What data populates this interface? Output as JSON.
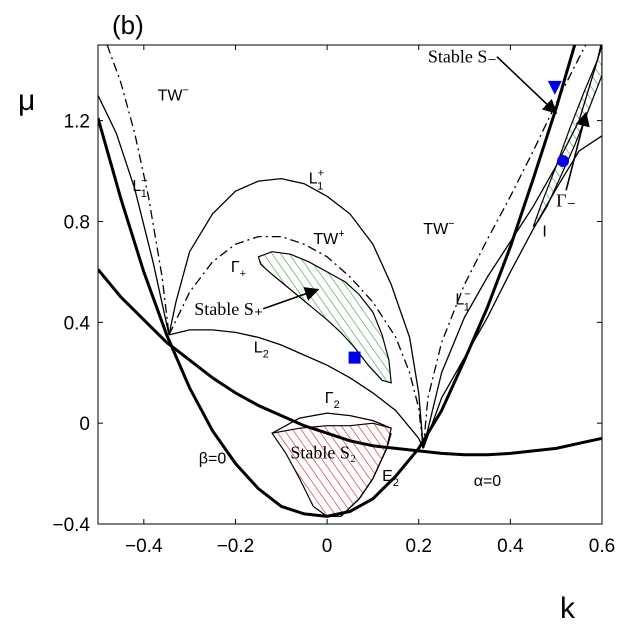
{
  "chart_data": {
    "type": "line",
    "panel_label": "(b)",
    "xlabel": "k",
    "ylabel": "μ",
    "xlim": [
      -0.5,
      0.6
    ],
    "ylim": [
      -0.4,
      1.5
    ],
    "xticks": [
      -0.4,
      -0.2,
      0,
      0.2,
      0.4,
      0.6
    ],
    "xtick_labels": [
      "−0.4",
      "−0.2",
      "0",
      "0.2",
      "0.4",
      "0.6"
    ],
    "yticks": [
      -0.4,
      0,
      0.4,
      0.8,
      1.2
    ],
    "ytick_labels": [
      "−0.4",
      "0",
      "0.4",
      "0.8",
      "1.2"
    ],
    "colors": {
      "green": "#33a033",
      "red": "#cc2020",
      "blue": "#0000ee",
      "black": "#000000"
    },
    "series": [
      {
        "name": "beta_zero",
        "label": "β=0",
        "style": "thick",
        "x": [
          -0.5,
          -0.45,
          -0.4,
          -0.35,
          -0.3,
          -0.25,
          -0.2,
          -0.15,
          -0.1,
          -0.05,
          0,
          0.05,
          0.1,
          0.15,
          0.2,
          0.25,
          0.3,
          0.35,
          0.4,
          0.45,
          0.5,
          0.55,
          0.6
        ],
        "y": [
          1.21,
          0.89,
          0.6,
          0.35,
          0.14,
          -0.03,
          -0.16,
          -0.26,
          -0.33,
          -0.36,
          -0.37,
          -0.35,
          -0.3,
          -0.21,
          -0.1,
          0.05,
          0.25,
          0.46,
          0.7,
          0.97,
          1.25,
          1.56,
          1.89
        ]
      },
      {
        "name": "alpha_zero",
        "label": "α=0",
        "style": "thick",
        "x": [
          -0.5,
          -0.45,
          -0.4,
          -0.35,
          -0.3,
          -0.25,
          -0.2,
          -0.15,
          -0.1,
          -0.05,
          0,
          0.05,
          0.1,
          0.15,
          0.2,
          0.25,
          0.3,
          0.35,
          0.4,
          0.45,
          0.5,
          0.55,
          0.6
        ],
        "y": [
          0.61,
          0.5,
          0.41,
          0.32,
          0.25,
          0.18,
          0.12,
          0.07,
          0.03,
          -0.01,
          -0.04,
          -0.07,
          -0.09,
          -0.1,
          -0.11,
          -0.12,
          -0.125,
          -0.125,
          -0.12,
          -0.11,
          -0.1,
          -0.08,
          -0.06
        ]
      },
      {
        "name": "L1_minus_left",
        "label": "L₁⁻",
        "style": "thin",
        "x": [
          -0.5,
          -0.46,
          -0.42,
          -0.38,
          -0.345
        ],
        "y": [
          1.3,
          1.15,
          0.93,
          0.64,
          0.35
        ]
      },
      {
        "name": "L1_plus",
        "label": "L₁⁺",
        "style": "thin",
        "x": [
          -0.345,
          -0.33,
          -0.3,
          -0.25,
          -0.2,
          -0.15,
          -0.1,
          -0.05,
          0,
          0.05,
          0.1,
          0.14,
          0.18,
          0.2,
          0.21
        ],
        "y": [
          0.35,
          0.48,
          0.68,
          0.83,
          0.92,
          0.96,
          0.97,
          0.95,
          0.9,
          0.83,
          0.71,
          0.55,
          0.34,
          0.12,
          -0.1
        ]
      },
      {
        "name": "L2",
        "label": "L₂",
        "style": "thin",
        "x": [
          -0.345,
          -0.3,
          -0.25,
          -0.2,
          -0.15,
          -0.1,
          -0.05,
          0,
          0.05,
          0.1,
          0.15,
          0.2,
          0.21
        ],
        "y": [
          0.35,
          0.37,
          0.37,
          0.36,
          0.34,
          0.31,
          0.27,
          0.23,
          0.18,
          0.12,
          0.05,
          -0.06,
          -0.1
        ]
      },
      {
        "name": "TW_minus_left",
        "label": "TW⁻",
        "style": "dashdot",
        "x": [
          -0.48,
          -0.45,
          -0.42,
          -0.39,
          -0.36,
          -0.345
        ],
        "y": [
          1.5,
          1.35,
          1.15,
          0.9,
          0.58,
          0.35
        ]
      },
      {
        "name": "TW_plus",
        "label": "TW⁺",
        "style": "dashdot",
        "x": [
          -0.345,
          -0.3,
          -0.25,
          -0.2,
          -0.15,
          -0.1,
          -0.05,
          0,
          0.05,
          0.1,
          0.15,
          0.18,
          0.2,
          0.21
        ],
        "y": [
          0.35,
          0.52,
          0.64,
          0.71,
          0.74,
          0.74,
          0.71,
          0.66,
          0.58,
          0.48,
          0.34,
          0.2,
          0.06,
          -0.1
        ]
      },
      {
        "name": "TW_minus_right",
        "label": "TW⁻",
        "style": "dashdot",
        "x": [
          0.21,
          0.22,
          0.25,
          0.3,
          0.35,
          0.4,
          0.45,
          0.5,
          0.55,
          0.6
        ],
        "y": [
          -0.1,
          0.1,
          0.32,
          0.55,
          0.73,
          0.9,
          1.08,
          1.27,
          1.45,
          1.62
        ]
      },
      {
        "name": "L1_minus_right",
        "label": "L₁⁻",
        "style": "thin",
        "x": [
          0.21,
          0.25,
          0.3,
          0.35,
          0.4,
          0.45,
          0.5,
          0.55,
          0.6
        ],
        "y": [
          -0.1,
          0.2,
          0.42,
          0.58,
          0.72,
          0.86,
          1.02,
          1.2,
          1.5
        ]
      },
      {
        "name": "I_line",
        "label": "I",
        "style": "thin",
        "x": [
          0.21,
          0.25,
          0.3,
          0.35,
          0.4,
          0.45,
          0.5,
          0.55,
          0.6
        ],
        "y": [
          -0.1,
          0.1,
          0.26,
          0.42,
          0.6,
          0.77,
          0.93,
          1.08,
          1.14
        ]
      },
      {
        "name": "Gamma2",
        "label": "Γ₂",
        "style": "thin",
        "x": [
          -0.12,
          -0.06,
          0,
          0.05,
          0.1,
          0.14
        ],
        "y": [
          -0.04,
          0.02,
          0.04,
          0.03,
          0.01,
          -0.02
        ]
      },
      {
        "name": "E2",
        "label": "E₂",
        "style": "thin",
        "x": [
          0.03,
          0.07,
          0.1,
          0.13,
          0.14
        ],
        "y": [
          -0.37,
          -0.3,
          -0.22,
          -0.1,
          -0.04
        ]
      }
    ],
    "regions": [
      {
        "name": "stable_S_plus",
        "label": "Stable S₊",
        "color": "green",
        "boundary_label": "Γ₊",
        "x": [
          -0.15,
          -0.12,
          -0.08,
          -0.04,
          0,
          0.04,
          0.07,
          0.1,
          0.12,
          0.135,
          0.14,
          0.12,
          0.09,
          0.06,
          0.03,
          0,
          -0.04,
          -0.08,
          -0.12,
          -0.145,
          -0.15
        ],
        "y": [
          0.66,
          0.68,
          0.67,
          0.64,
          0.6,
          0.56,
          0.51,
          0.44,
          0.35,
          0.25,
          0.16,
          0.17,
          0.23,
          0.3,
          0.36,
          0.41,
          0.47,
          0.53,
          0.59,
          0.63,
          0.66
        ]
      },
      {
        "name": "stable_S_minus",
        "label": "Stable S₋",
        "color": "green",
        "boundary_label": "Γ₋",
        "x": [
          0.45,
          0.47,
          0.5,
          0.53,
          0.56,
          0.59,
          0.6,
          0.6,
          0.57,
          0.54,
          0.51,
          0.48,
          0.46,
          0.45
        ],
        "y": [
          0.78,
          0.88,
          1.02,
          1.17,
          1.31,
          1.44,
          1.52,
          1.38,
          1.24,
          1.1,
          0.98,
          0.86,
          0.8,
          0.78
        ]
      },
      {
        "name": "stable_S2",
        "label": "Stable S₂",
        "color": "red",
        "x": [
          -0.12,
          -0.06,
          0,
          0.05,
          0.1,
          0.14,
          0.13,
          0.1,
          0.07,
          0.03,
          0,
          -0.03,
          -0.06,
          -0.09,
          -0.12
        ],
        "y": [
          -0.04,
          -0.02,
          -0.01,
          -0.01,
          0.0,
          -0.02,
          -0.1,
          -0.22,
          -0.3,
          -0.37,
          -0.37,
          -0.33,
          -0.22,
          -0.12,
          -0.04
        ]
      }
    ],
    "markers": [
      {
        "name": "square",
        "shape": "square",
        "x": 0.06,
        "y": 0.26,
        "color": "blue"
      },
      {
        "name": "circle",
        "shape": "circle",
        "x": 0.515,
        "y": 1.04,
        "color": "blue"
      },
      {
        "name": "triangle",
        "shape": "triangle-down",
        "x": 0.497,
        "y": 1.33,
        "color": "blue"
      }
    ],
    "labels": [
      {
        "name": "TW-minus-left",
        "main": "TW",
        "sup": "−",
        "x": -0.37,
        "y": 1.28
      },
      {
        "name": "L1-minus-left",
        "main": "L",
        "sub": "1",
        "sup": "−",
        "x": -0.425,
        "y": 0.92
      },
      {
        "name": "L1-plus",
        "main": "L",
        "sub": "1",
        "sup": "+",
        "x": -0.04,
        "y": 0.95
      },
      {
        "name": "TW-plus",
        "main": "TW",
        "sup": "+",
        "x": -0.03,
        "y": 0.71
      },
      {
        "name": "Gamma-plus",
        "main": "Γ",
        "sub": "+",
        "x": -0.21,
        "y": 0.6
      },
      {
        "name": "L2",
        "main": "L",
        "sub": "2",
        "x": -0.16,
        "y": 0.28
      },
      {
        "name": "Gamma2",
        "main": "Γ",
        "sub": "2",
        "x": -0.005,
        "y": 0.08
      },
      {
        "name": "beta-zero",
        "main": "β=0",
        "x": -0.28,
        "y": -0.16
      },
      {
        "name": "E2",
        "main": "E",
        "sub": "2",
        "x": 0.12,
        "y": -0.23
      },
      {
        "name": "alpha-zero",
        "main": "α=0",
        "x": 0.32,
        "y": -0.25
      },
      {
        "name": "TW-minus-right",
        "main": "TW",
        "sup": "−",
        "x": 0.21,
        "y": 0.75
      },
      {
        "name": "L1-minus-right",
        "main": "L",
        "sub": "1",
        "sup": "−",
        "x": 0.28,
        "y": 0.47
      },
      {
        "name": "I-label",
        "main": "I",
        "x": 0.47,
        "y": 0.74
      }
    ],
    "annotations": [
      {
        "name": "stable-S-plus-annotation",
        "text": "Stable S₊",
        "x": -0.29,
        "y": 0.43,
        "arrow_to": [
          -0.02,
          0.53
        ]
      },
      {
        "name": "stable-S-minus-annotation",
        "text": "Stable S₋",
        "x": 0.22,
        "y": 1.43,
        "arrow_to": [
          0.5,
          1.23
        ]
      },
      {
        "name": "stable-S2-annotation",
        "text": "Stable S₂",
        "x": -0.08,
        "y": -0.14
      },
      {
        "name": "gamma-minus-annotation",
        "text": "Γ₋",
        "x": 0.5,
        "y": 0.86,
        "arrow_to": [
          0.565,
          1.23
        ]
      }
    ]
  }
}
